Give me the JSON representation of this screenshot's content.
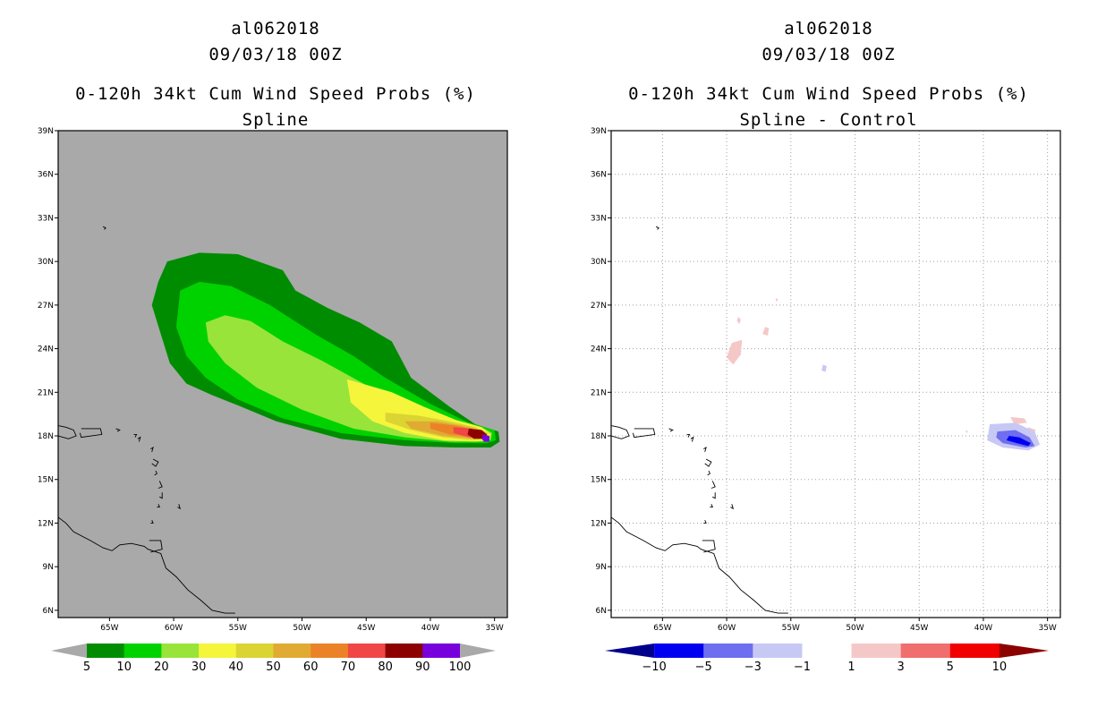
{
  "chart_data": [
    {
      "type": "heatmap",
      "storm_id": "al062018",
      "datetime": "09/03/18 00Z",
      "title": "0-120h 34kt Cum Wind Speed Probs (%)",
      "subtitle": "Spline",
      "xlim": [
        -69,
        -34
      ],
      "ylim": [
        5.5,
        39
      ],
      "x_ticks": [
        {
          "value": -65,
          "label": "65W"
        },
        {
          "value": -60,
          "label": "60W"
        },
        {
          "value": -55,
          "label": "55W"
        },
        {
          "value": -50,
          "label": "50W"
        },
        {
          "value": -45,
          "label": "45W"
        },
        {
          "value": -40,
          "label": "40W"
        },
        {
          "value": -35,
          "label": "35W"
        }
      ],
      "y_ticks": [
        {
          "value": 6,
          "label": "6N"
        },
        {
          "value": 9,
          "label": "9N"
        },
        {
          "value": 12,
          "label": "12N"
        },
        {
          "value": 15,
          "label": "15N"
        },
        {
          "value": 18,
          "label": "18N"
        },
        {
          "value": 21,
          "label": "21N"
        },
        {
          "value": 24,
          "label": "24N"
        },
        {
          "value": 27,
          "label": "27N"
        },
        {
          "value": 30,
          "label": "30N"
        },
        {
          "value": 33,
          "label": "33N"
        },
        {
          "value": 36,
          "label": "36N"
        },
        {
          "value": 39,
          "label": "39N"
        }
      ],
      "grid": false,
      "background_color": "#a9a9a9",
      "colorbar": {
        "labels": [
          "5",
          "10",
          "20",
          "30",
          "40",
          "50",
          "60",
          "70",
          "80",
          "90",
          "100"
        ],
        "colors": [
          "#008c00",
          "#00d200",
          "#99e43a",
          "#f5f53c",
          "#dcd432",
          "#e1aa32",
          "#eb8228",
          "#f04646",
          "#8c0000",
          "#7800dc"
        ],
        "end_color": "#a9a9a9"
      },
      "contours": [
        {
          "level": 5,
          "color": "#008c00",
          "points": [
            [
              -60.5,
              30.0
            ],
            [
              -58.0,
              30.6
            ],
            [
              -55.0,
              30.5
            ],
            [
              -51.5,
              29.4
            ],
            [
              -50.5,
              28.0
            ],
            [
              -48.0,
              26.8
            ],
            [
              -45.5,
              25.8
            ],
            [
              -43.0,
              24.5
            ],
            [
              -41.5,
              22.0
            ],
            [
              -38.5,
              20.0
            ],
            [
              -36.5,
              18.8
            ],
            [
              -34.7,
              18.3
            ],
            [
              -34.6,
              17.6
            ],
            [
              -35.3,
              17.2
            ],
            [
              -38.0,
              17.2
            ],
            [
              -42.0,
              17.3
            ],
            [
              -47.0,
              17.8
            ],
            [
              -52.0,
              19.0
            ],
            [
              -55.0,
              20.1
            ],
            [
              -57.0,
              20.8
            ],
            [
              -59.0,
              21.6
            ],
            [
              -60.3,
              23.0
            ],
            [
              -61.0,
              25.0
            ],
            [
              -61.7,
              27.0
            ],
            [
              -61.2,
              28.6
            ]
          ]
        },
        {
          "level": 10,
          "color": "#00d200",
          "points": [
            [
              -59.5,
              28.0
            ],
            [
              -58.0,
              28.6
            ],
            [
              -55.5,
              28.3
            ],
            [
              -52.5,
              27.0
            ],
            [
              -49.0,
              25.0
            ],
            [
              -46.0,
              23.5
            ],
            [
              -43.5,
              22.0
            ],
            [
              -40.0,
              20.2
            ],
            [
              -37.0,
              18.9
            ],
            [
              -35.0,
              18.4
            ],
            [
              -34.9,
              17.7
            ],
            [
              -35.6,
              17.5
            ],
            [
              -38.0,
              17.5
            ],
            [
              -42.0,
              17.7
            ],
            [
              -47.0,
              18.2
            ],
            [
              -51.5,
              19.2
            ],
            [
              -55.0,
              20.5
            ],
            [
              -57.5,
              22.0
            ],
            [
              -59.0,
              23.5
            ],
            [
              -59.8,
              25.5
            ]
          ]
        },
        {
          "level": 20,
          "color": "#99e43a",
          "points": [
            [
              -57.5,
              25.8
            ],
            [
              -56.0,
              26.3
            ],
            [
              -54.0,
              25.9
            ],
            [
              -51.5,
              24.5
            ],
            [
              -48.5,
              23.2
            ],
            [
              -45.0,
              21.5
            ],
            [
              -41.5,
              20.3
            ],
            [
              -38.5,
              19.2
            ],
            [
              -36.0,
              18.6
            ],
            [
              -35.2,
              18.2
            ],
            [
              -35.3,
              17.7
            ],
            [
              -36.0,
              17.6
            ],
            [
              -38.5,
              17.6
            ],
            [
              -42.0,
              17.9
            ],
            [
              -46.0,
              18.5
            ],
            [
              -50.0,
              19.8
            ],
            [
              -53.5,
              21.3
            ],
            [
              -56.0,
              23.0
            ],
            [
              -57.3,
              24.5
            ]
          ]
        },
        {
          "level": 30,
          "color": "#f5f53c",
          "points": [
            [
              -46.5,
              21.9
            ],
            [
              -43.0,
              21.0
            ],
            [
              -40.5,
              20.0
            ],
            [
              -38.0,
              19.1
            ],
            [
              -36.0,
              18.6
            ],
            [
              -35.3,
              18.1
            ],
            [
              -35.5,
              17.7
            ],
            [
              -36.5,
              17.6
            ],
            [
              -39.0,
              17.7
            ],
            [
              -42.0,
              18.2
            ],
            [
              -44.5,
              19.0
            ],
            [
              -46.2,
              20.3
            ]
          ]
        },
        {
          "level": 40,
          "color": "#dcd432",
          "points": [
            [
              -43.5,
              19.6
            ],
            [
              -41.0,
              19.4
            ],
            [
              -38.5,
              19.0
            ],
            [
              -36.5,
              18.6
            ],
            [
              -35.5,
              18.2
            ],
            [
              -35.6,
              17.8
            ],
            [
              -36.6,
              17.7
            ],
            [
              -39.0,
              17.9
            ],
            [
              -41.5,
              18.4
            ],
            [
              -43.5,
              19.0
            ]
          ]
        },
        {
          "level": 50,
          "color": "#e1aa32",
          "points": [
            [
              -42.0,
              19.0
            ],
            [
              -39.5,
              19.0
            ],
            [
              -37.5,
              18.7
            ],
            [
              -36.0,
              18.4
            ],
            [
              -35.7,
              18.0
            ],
            [
              -36.6,
              17.8
            ],
            [
              -39.0,
              18.0
            ],
            [
              -41.5,
              18.5
            ]
          ]
        },
        {
          "level": 60,
          "color": "#eb8228",
          "points": [
            [
              -40.0,
              18.9
            ],
            [
              -38.0,
              18.7
            ],
            [
              -36.4,
              18.4
            ],
            [
              -35.8,
              18.0
            ],
            [
              -36.6,
              17.9
            ],
            [
              -38.5,
              18.1
            ],
            [
              -40.0,
              18.5
            ]
          ]
        },
        {
          "level": 70,
          "color": "#f04646",
          "points": [
            [
              -38.2,
              18.6
            ],
            [
              -36.8,
              18.5
            ],
            [
              -35.9,
              18.2
            ],
            [
              -36.0,
              17.9
            ],
            [
              -37.0,
              17.9
            ],
            [
              -38.2,
              18.2
            ]
          ]
        },
        {
          "level": 80,
          "color": "#8c0000",
          "points": [
            [
              -37.0,
              18.5
            ],
            [
              -36.0,
              18.4
            ],
            [
              -35.6,
              18.1
            ],
            [
              -35.8,
              17.8
            ],
            [
              -36.6,
              17.8
            ],
            [
              -37.1,
              18.1
            ]
          ]
        },
        {
          "level": 90,
          "color": "#7800dc",
          "points": [
            [
              -35.9,
              18.1
            ],
            [
              -35.4,
              18.0
            ],
            [
              -35.4,
              17.6
            ],
            [
              -35.8,
              17.6
            ],
            [
              -36.0,
              17.8
            ]
          ]
        }
      ]
    },
    {
      "type": "heatmap",
      "storm_id": "al062018",
      "datetime": "09/03/18 00Z",
      "title": "0-120h 34kt Cum Wind Speed Probs (%)",
      "subtitle": "Spline - Control",
      "xlim": [
        -69,
        -34
      ],
      "ylim": [
        5.5,
        39
      ],
      "x_ticks": [
        {
          "value": -65,
          "label": "65W"
        },
        {
          "value": -60,
          "label": "60W"
        },
        {
          "value": -55,
          "label": "55W"
        },
        {
          "value": -50,
          "label": "50W"
        },
        {
          "value": -45,
          "label": "45W"
        },
        {
          "value": -40,
          "label": "40W"
        },
        {
          "value": -35,
          "label": "35W"
        }
      ],
      "y_ticks": [
        {
          "value": 6,
          "label": "6N"
        },
        {
          "value": 9,
          "label": "9N"
        },
        {
          "value": 12,
          "label": "12N"
        },
        {
          "value": 15,
          "label": "15N"
        },
        {
          "value": 18,
          "label": "18N"
        },
        {
          "value": 21,
          "label": "21N"
        },
        {
          "value": 24,
          "label": "24N"
        },
        {
          "value": 27,
          "label": "27N"
        },
        {
          "value": 30,
          "label": "30N"
        },
        {
          "value": 33,
          "label": "33N"
        },
        {
          "value": 36,
          "label": "36N"
        },
        {
          "value": 39,
          "label": "39N"
        }
      ],
      "grid": true,
      "background_color": "#ffffff",
      "colorbar": {
        "labels": [
          "-10",
          "-5",
          "-3",
          "-1",
          "1",
          "3",
          "5",
          "10"
        ],
        "colors": [
          "#00008c",
          "#0000f0",
          "#6e6ef0",
          "#c8c8f5",
          "#ffffff",
          "#f5c8c8",
          "#f06e6e",
          "#f00000",
          "#8c0000"
        ]
      },
      "contours": [
        {
          "level": 1,
          "color": "#f5c8c8",
          "points": [
            [
              -59.6,
              24.4
            ],
            [
              -58.8,
              24.6
            ],
            [
              -58.9,
              23.6
            ],
            [
              -59.5,
              22.9
            ],
            [
              -60.0,
              23.4
            ]
          ]
        },
        {
          "level": 1,
          "color": "#f5c8c8",
          "points": [
            [
              -59.1,
              26.2
            ],
            [
              -58.9,
              26.0
            ],
            [
              -59.0,
              25.7
            ],
            [
              -59.2,
              25.9
            ]
          ]
        },
        {
          "level": 1,
          "color": "#f5c8c8",
          "points": [
            [
              -57.0,
              25.5
            ],
            [
              -56.7,
              25.4
            ],
            [
              -56.8,
              24.9
            ],
            [
              -57.2,
              25.0
            ]
          ]
        },
        {
          "level": 1,
          "color": "#f5c8c8",
          "points": [
            [
              -56.2,
              27.5
            ],
            [
              -56.0,
              27.4
            ],
            [
              -56.1,
              27.2
            ]
          ]
        },
        {
          "level": 1,
          "color": "#f5c8c8",
          "points": [
            [
              -37.9,
              19.3
            ],
            [
              -36.8,
              19.2
            ],
            [
              -36.6,
              18.9
            ],
            [
              -37.6,
              18.8
            ]
          ]
        },
        {
          "level": 1,
          "color": "#f5c8c8",
          "points": [
            [
              -36.5,
              18.6
            ],
            [
              -35.9,
              18.4
            ],
            [
              -36.2,
              18.0
            ],
            [
              -36.6,
              18.2
            ]
          ]
        },
        {
          "level": -1,
          "color": "#c8c8f5",
          "points": [
            [
              -52.5,
              22.9
            ],
            [
              -52.2,
              22.8
            ],
            [
              -52.3,
              22.4
            ],
            [
              -52.6,
              22.5
            ]
          ]
        },
        {
          "level": -1,
          "color": "#c8c8f5",
          "points": [
            [
              -41.4,
              18.4
            ],
            [
              -41.2,
              18.3
            ],
            [
              -41.3,
              18.2
            ]
          ]
        },
        {
          "level": -1,
          "color": "#c8c8f5",
          "points": [
            [
              -39.5,
              18.8
            ],
            [
              -37.5,
              18.9
            ],
            [
              -36.0,
              18.3
            ],
            [
              -35.6,
              17.4
            ],
            [
              -36.5,
              17.0
            ],
            [
              -38.5,
              17.2
            ],
            [
              -39.7,
              17.7
            ]
          ]
        },
        {
          "level": -3,
          "color": "#6e6ef0",
          "points": [
            [
              -38.9,
              18.3
            ],
            [
              -37.5,
              18.4
            ],
            [
              -36.4,
              17.9
            ],
            [
              -36.0,
              17.3
            ],
            [
              -36.7,
              17.2
            ],
            [
              -38.5,
              17.5
            ],
            [
              -39.0,
              17.9
            ]
          ]
        },
        {
          "level": -5,
          "color": "#0000f0",
          "points": [
            [
              -38.0,
              18.0
            ],
            [
              -37.2,
              17.9
            ],
            [
              -36.3,
              17.5
            ],
            [
              -36.5,
              17.3
            ],
            [
              -37.4,
              17.5
            ],
            [
              -38.2,
              17.7
            ]
          ]
        }
      ]
    }
  ]
}
